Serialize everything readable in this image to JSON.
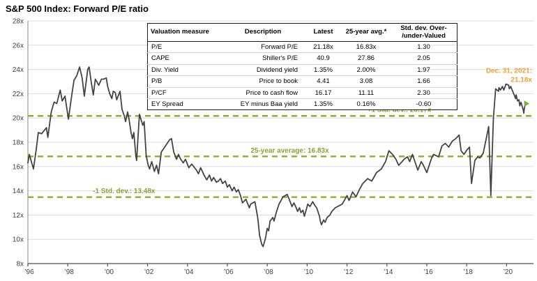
{
  "title": "S&P 500 Index: Forward P/E ratio",
  "colors": {
    "line": "#434341",
    "dashed": "#98A73A",
    "annotation_olive": "#8FA03A",
    "annotation_orange": "#E8A33C",
    "marker_green": "#76B043",
    "grid": "#DCDCDC",
    "axis_bottom": "#4D4D4D",
    "axis_left": "#9A9A9A",
    "tick_text": "#414042"
  },
  "table": {
    "headers": [
      "Valuation measure",
      "Description",
      "Latest",
      "25-year avg.*",
      "Std. dev. Over-\n/under-Valued"
    ],
    "rows": [
      [
        "P/E",
        "Forward P/E",
        "21.18x",
        "16.83x",
        "1.30"
      ],
      [
        "CAPE",
        "Shiller's P/E",
        "40.9",
        "27.86",
        "2.05"
      ],
      [
        "Div. Yield",
        "Dividend yield",
        "1.35%",
        "2.00%",
        "1.97"
      ],
      [
        "P/B",
        "Price to book",
        "4.41",
        "3.08",
        "1.66"
      ],
      [
        "P/CF",
        "Price to cash flow",
        "16.17",
        "11.11",
        "2.30"
      ],
      [
        "EY Spread",
        "EY minus Baa yield",
        "1.35%",
        "0.16%",
        "-0.60"
      ]
    ]
  },
  "chart_data": {
    "type": "line",
    "title": "S&P 500 Index: Forward P/E ratio",
    "xlabel": "",
    "ylabel": "Forward P/E ratio",
    "xlim": [
      1996.0,
      2021.35
    ],
    "ylim": [
      8,
      28
    ],
    "grid": "horizontal",
    "y_ticks": [
      28,
      26,
      24,
      22,
      20,
      18,
      16,
      14,
      12,
      10,
      8
    ],
    "y_tick_labels": [
      "28x",
      "26x",
      "24x",
      "22x",
      "20x",
      "18x",
      "16x",
      "14x",
      "12x",
      "10x",
      "8x"
    ],
    "x_ticks": [
      1996,
      1998,
      2000,
      2002,
      2004,
      2006,
      2008,
      2010,
      2012,
      2014,
      2016,
      2018,
      2020
    ],
    "x_tick_labels": [
      "’96",
      "’98",
      "’00",
      "’02",
      "’04",
      "’06",
      "’08",
      "’10",
      "’12",
      "’14",
      "’16",
      "’18",
      "’20"
    ],
    "reference_lines": [
      {
        "value": 20.17,
        "label": "+1 Std. dev.: 20.17x",
        "label_anchor_year": 2014.62
      },
      {
        "value": 16.83,
        "label": "25-year average: 16.83x",
        "label_anchor_year": 2009.13
      },
      {
        "value": 13.48,
        "label": "-1 Std. dev.: 13.48x",
        "label_anchor_year": 2000.82
      }
    ],
    "end_annotation": {
      "text_line1": "Dec. 31, 2021:",
      "text_line2": "21.18x"
    },
    "end_marker": {
      "x": 2020.97,
      "y": 21.18
    },
    "series": [
      {
        "name": "Forward P/E",
        "points": [
          [
            1996.0,
            16.3
          ],
          [
            1996.07,
            17.0
          ],
          [
            1996.28,
            15.8
          ],
          [
            1996.41,
            17.3
          ],
          [
            1996.52,
            18.8
          ],
          [
            1996.69,
            18.7
          ],
          [
            1996.93,
            19.2
          ],
          [
            1997.0,
            18.4
          ],
          [
            1997.17,
            20.5
          ],
          [
            1997.31,
            21.3
          ],
          [
            1997.45,
            21.2
          ],
          [
            1997.62,
            22.3
          ],
          [
            1997.72,
            21.4
          ],
          [
            1997.86,
            21.8
          ],
          [
            1998.03,
            19.9
          ],
          [
            1998.21,
            22.0
          ],
          [
            1998.31,
            23.1
          ],
          [
            1998.45,
            23.5
          ],
          [
            1998.59,
            24.2
          ],
          [
            1998.72,
            23.3
          ],
          [
            1998.83,
            21.8
          ],
          [
            1999.0,
            24.0
          ],
          [
            1999.07,
            24.2
          ],
          [
            1999.17,
            23.0
          ],
          [
            1999.28,
            21.9
          ],
          [
            1999.38,
            23.2
          ],
          [
            1999.55,
            22.7
          ],
          [
            1999.69,
            23.2
          ],
          [
            1999.79,
            23.2
          ],
          [
            1999.93,
            23.3
          ],
          [
            2000.0,
            22.6
          ],
          [
            2000.1,
            22.0
          ],
          [
            2000.21,
            21.6
          ],
          [
            2000.28,
            22.2
          ],
          [
            2000.38,
            22.1
          ],
          [
            2000.45,
            21.5
          ],
          [
            2000.55,
            21.9
          ],
          [
            2000.62,
            22.2
          ],
          [
            2000.72,
            20.7
          ],
          [
            2000.83,
            20.2
          ],
          [
            2000.9,
            19.7
          ],
          [
            2001.0,
            20.5
          ],
          [
            2001.07,
            19.9
          ],
          [
            2001.17,
            18.8
          ],
          [
            2001.24,
            18.3
          ],
          [
            2001.31,
            18.8
          ],
          [
            2001.41,
            16.9
          ],
          [
            2001.45,
            16.5
          ],
          [
            2001.59,
            20.3
          ],
          [
            2001.76,
            19.4
          ],
          [
            2001.83,
            19.7
          ],
          [
            2001.93,
            16.9
          ],
          [
            2002.03,
            16.1
          ],
          [
            2002.1,
            15.8
          ],
          [
            2002.21,
            16.4
          ],
          [
            2002.34,
            15.6
          ],
          [
            2002.45,
            16.1
          ],
          [
            2002.55,
            15.4
          ],
          [
            2002.69,
            17.2
          ],
          [
            2002.9,
            17.7
          ],
          [
            2003.1,
            18.2
          ],
          [
            2003.2,
            18.3
          ],
          [
            2003.31,
            17.2
          ],
          [
            2003.45,
            16.6
          ],
          [
            2003.55,
            17.0
          ],
          [
            2003.66,
            16.6
          ],
          [
            2003.79,
            16.3
          ],
          [
            2003.9,
            16.6
          ],
          [
            2004.07,
            15.9
          ],
          [
            2004.21,
            16.2
          ],
          [
            2004.31,
            16.0
          ],
          [
            2004.45,
            15.7
          ],
          [
            2004.55,
            15.4
          ],
          [
            2004.66,
            15.9
          ],
          [
            2004.83,
            15.3
          ],
          [
            2004.97,
            14.9
          ],
          [
            2005.1,
            15.3
          ],
          [
            2005.21,
            14.8
          ],
          [
            2005.31,
            15.1
          ],
          [
            2005.45,
            14.7
          ],
          [
            2005.55,
            14.8
          ],
          [
            2005.66,
            15.0
          ],
          [
            2005.76,
            14.6
          ],
          [
            2005.9,
            14.8
          ],
          [
            2006.0,
            14.3
          ],
          [
            2006.1,
            14.5
          ],
          [
            2006.24,
            14.0
          ],
          [
            2006.34,
            14.3
          ],
          [
            2006.45,
            13.9
          ],
          [
            2006.55,
            14.1
          ],
          [
            2006.66,
            13.6
          ],
          [
            2006.76,
            13.0
          ],
          [
            2006.93,
            13.3
          ],
          [
            2007.1,
            12.6
          ],
          [
            2007.17,
            12.9
          ],
          [
            2007.38,
            13.1
          ],
          [
            2007.52,
            11.8
          ],
          [
            2007.62,
            10.3
          ],
          [
            2007.72,
            9.6
          ],
          [
            2007.79,
            9.4
          ],
          [
            2007.9,
            10.0
          ],
          [
            2008.0,
            10.9
          ],
          [
            2008.07,
            10.7
          ],
          [
            2008.14,
            11.5
          ],
          [
            2008.28,
            11.8
          ],
          [
            2008.34,
            11.5
          ],
          [
            2008.45,
            12.2
          ],
          [
            2008.59,
            12.9
          ],
          [
            2008.69,
            13.2
          ],
          [
            2008.79,
            13.5
          ],
          [
            2008.9,
            13.6
          ],
          [
            2009.0,
            13.7
          ],
          [
            2009.1,
            13.3
          ],
          [
            2009.24,
            12.7
          ],
          [
            2009.34,
            13.0
          ],
          [
            2009.45,
            12.6
          ],
          [
            2009.52,
            12.3
          ],
          [
            2009.62,
            12.6
          ],
          [
            2009.69,
            12.2
          ],
          [
            2009.79,
            12.4
          ],
          [
            2009.86,
            11.9
          ],
          [
            2009.93,
            12.3
          ],
          [
            2010.03,
            12.9
          ],
          [
            2010.14,
            12.7
          ],
          [
            2010.28,
            13.1
          ],
          [
            2010.38,
            12.8
          ],
          [
            2010.48,
            12.6
          ],
          [
            2010.62,
            11.9
          ],
          [
            2010.66,
            11.5
          ],
          [
            2010.72,
            11.2
          ],
          [
            2010.83,
            11.6
          ],
          [
            2010.9,
            11.4
          ],
          [
            2011.0,
            11.8
          ],
          [
            2011.14,
            12.0
          ],
          [
            2011.24,
            12.3
          ],
          [
            2011.41,
            12.6
          ],
          [
            2011.76,
            12.9
          ],
          [
            2012.0,
            13.6
          ],
          [
            2012.1,
            13.2
          ],
          [
            2012.28,
            13.9
          ],
          [
            2012.45,
            13.5
          ],
          [
            2012.62,
            14.1
          ],
          [
            2012.79,
            14.6
          ],
          [
            2013.03,
            15.0
          ],
          [
            2013.24,
            14.8
          ],
          [
            2013.48,
            15.5
          ],
          [
            2013.72,
            15.8
          ],
          [
            2013.93,
            16.4
          ],
          [
            2014.1,
            17.3
          ],
          [
            2014.28,
            17.0
          ],
          [
            2014.45,
            16.6
          ],
          [
            2014.59,
            16.1
          ],
          [
            2014.76,
            16.4
          ],
          [
            2014.86,
            16.6
          ],
          [
            2015.03,
            16.8
          ],
          [
            2015.14,
            16.4
          ],
          [
            2015.28,
            17.0
          ],
          [
            2015.55,
            15.7
          ],
          [
            2015.72,
            16.4
          ],
          [
            2015.83,
            16.1
          ],
          [
            2016.0,
            15.5
          ],
          [
            2016.24,
            16.7
          ],
          [
            2016.34,
            17.0
          ],
          [
            2016.59,
            16.8
          ],
          [
            2016.76,
            17.7
          ],
          [
            2016.93,
            17.9
          ],
          [
            2017.1,
            17.6
          ],
          [
            2017.28,
            18.1
          ],
          [
            2017.45,
            18.3
          ],
          [
            2017.62,
            18.6
          ],
          [
            2017.72,
            17.3
          ],
          [
            2017.86,
            17.0
          ],
          [
            2018.03,
            17.4
          ],
          [
            2018.14,
            17.6
          ],
          [
            2018.24,
            14.6
          ],
          [
            2018.41,
            16.5
          ],
          [
            2018.55,
            16.8
          ],
          [
            2018.66,
            16.7
          ],
          [
            2018.83,
            17.1
          ],
          [
            2018.93,
            17.9
          ],
          [
            2019.1,
            19.3
          ],
          [
            2019.21,
            13.6
          ],
          [
            2019.34,
            20.0
          ],
          [
            2019.45,
            22.4
          ],
          [
            2019.59,
            22.2
          ],
          [
            2019.62,
            22.5
          ],
          [
            2019.69,
            22.3
          ],
          [
            2019.79,
            22.6
          ],
          [
            2019.86,
            22.3
          ],
          [
            2019.97,
            22.8
          ],
          [
            2020.1,
            22.7
          ],
          [
            2020.14,
            22.4
          ],
          [
            2020.21,
            22.6
          ],
          [
            2020.28,
            22.3
          ],
          [
            2020.38,
            21.9
          ],
          [
            2020.45,
            21.6
          ],
          [
            2020.48,
            21.9
          ],
          [
            2020.55,
            21.4
          ],
          [
            2020.62,
            21.5
          ],
          [
            2020.66,
            21.0
          ],
          [
            2020.72,
            21.3
          ],
          [
            2020.79,
            20.9
          ],
          [
            2020.83,
            20.7
          ],
          [
            2020.86,
            20.4
          ],
          [
            2020.9,
            20.9
          ],
          [
            2020.97,
            21.18
          ]
        ]
      }
    ]
  }
}
